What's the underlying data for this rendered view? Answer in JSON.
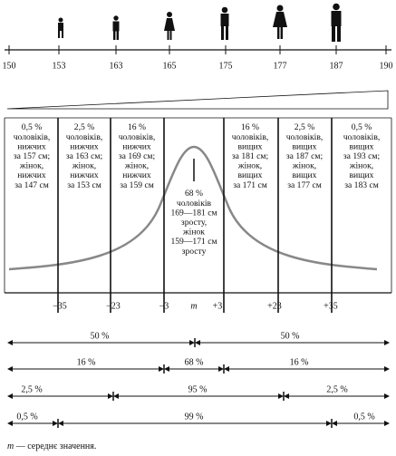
{
  "scale": {
    "ticks": [
      150,
      153,
      163,
      165,
      175,
      177,
      187,
      190
    ]
  },
  "columns": [
    {
      "lines": [
        "0,5 %",
        "чоловіків,",
        "нижчих",
        "за 157 см;",
        "жінок,",
        "нижчих",
        "за 147 см"
      ]
    },
    {
      "lines": [
        "2,5 %",
        "чоловіків,",
        "нижчих",
        "за 163 см;",
        "жінок,",
        "нижчих",
        "за 153 см"
      ]
    },
    {
      "lines": [
        "16 %",
        "чоловіків,",
        "нижчих",
        "за 169 см;",
        "жінок,",
        "нижчих",
        "за 159 см"
      ]
    },
    {
      "lines": [
        "68 %",
        "чоловіків",
        "169—181 см",
        "зросту,",
        "жінок",
        "159—171 см",
        "зросту"
      ]
    },
    {
      "lines": [
        "16 %",
        "чоловіків,",
        "вищих",
        "за 181 см;",
        "жінок,",
        "вищих",
        "за 171 см"
      ]
    },
    {
      "lines": [
        "2,5 %",
        "чоловіків,",
        "вищих",
        "за 187 см;",
        "жінок,",
        "вищих",
        "за 177 см"
      ]
    },
    {
      "lines": [
        "0,5 %",
        "чоловіків,",
        "вищих",
        "за 193 см;",
        "жінок,",
        "вищих",
        "за 183 см"
      ]
    }
  ],
  "axis": {
    "labels": [
      "−35",
      "−23",
      "−3",
      "m",
      "+3",
      "+23",
      "+35"
    ]
  },
  "ranges": [
    {
      "labels": [
        "50 %",
        "50 %"
      ]
    },
    {
      "labels": [
        "16 %",
        "68 %",
        "16 %"
      ]
    },
    {
      "labels": [
        "2,5 %",
        "95 %",
        "2,5 %"
      ]
    },
    {
      "labels": [
        "0,5 %",
        "99 %",
        "0,5 %"
      ]
    }
  ],
  "footnote": {
    "symbol": "m",
    "text": "— середнє значення."
  }
}
